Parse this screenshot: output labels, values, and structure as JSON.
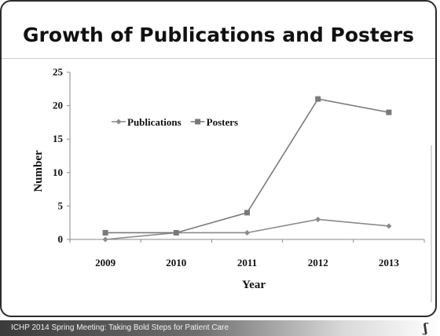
{
  "slide": {
    "title": "Growth of Publications and Posters",
    "footer": "ICHP 2014 Spring Meeting: Taking Bold Steps for Patient Care",
    "logo_glyph": "ʃ"
  },
  "chart_data": {
    "type": "line",
    "title": "",
    "xlabel": "Year",
    "ylabel": "Number",
    "categories": [
      "2009",
      "2010",
      "2011",
      "2012",
      "2013"
    ],
    "yticks": [
      "0",
      "5",
      "10",
      "15",
      "20",
      "25"
    ],
    "ylim": [
      0,
      25
    ],
    "grid": false,
    "legend_position": "upper-left",
    "series": [
      {
        "name": "Publications",
        "values": [
          0,
          1,
          1,
          3,
          2
        ],
        "color": "#8a8a8a",
        "marker": "diamond"
      },
      {
        "name": "Posters",
        "values": [
          1,
          1,
          4,
          21,
          19
        ],
        "color": "#7a7a7a",
        "marker": "square"
      }
    ]
  }
}
